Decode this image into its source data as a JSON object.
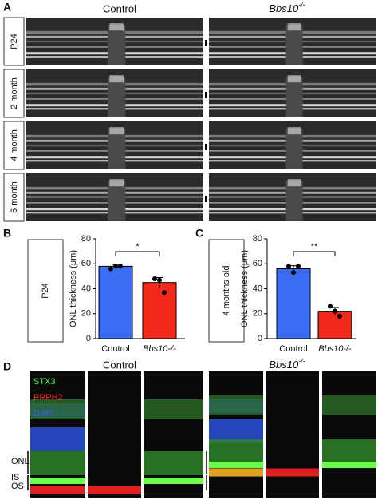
{
  "panel_a": {
    "label": "A",
    "col_control": "Control",
    "col_mutant_base": "Bbs10",
    "col_mutant_sup": "-/-",
    "rows": [
      "P24",
      "2 month",
      "4 month",
      "6 month"
    ]
  },
  "chart_data": [
    {
      "type": "bar",
      "panel": "B",
      "side_label": "P24",
      "y_label": "ONL thickness (μm)",
      "categories": [
        "Control",
        "Bbs10-/-"
      ],
      "values": [
        58,
        45
      ],
      "errors": [
        1.5,
        4
      ],
      "points": [
        [
          56,
          58,
          58
        ],
        [
          48,
          47,
          37
        ]
      ],
      "colors": [
        "#3b6cf2",
        "#f2291a"
      ],
      "significance": "*",
      "ylim": [
        0,
        80
      ],
      "yticks": [
        0,
        20,
        40,
        60,
        80
      ]
    },
    {
      "type": "bar",
      "panel": "C",
      "side_label": "4 months old",
      "y_label": "ONL thickness (μm)",
      "categories": [
        "Control",
        "Bbs10-/-"
      ],
      "values": [
        56,
        22
      ],
      "errors": [
        2.5,
        3
      ],
      "points": [
        [
          58,
          53,
          58
        ],
        [
          26,
          22,
          18
        ]
      ],
      "colors": [
        "#3b6cf2",
        "#f2291a"
      ],
      "significance": "**",
      "ylim": [
        0,
        80
      ],
      "yticks": [
        0,
        20,
        40,
        60,
        80
      ]
    }
  ],
  "panel_d": {
    "label": "D",
    "col_control": "Control",
    "col_mutant_base": "Bbs10",
    "col_mutant_sup": "-/-",
    "stains": [
      "STX3",
      "PRPH2",
      "DAPI"
    ],
    "layers": [
      "ONL",
      "IS",
      "OS"
    ]
  }
}
